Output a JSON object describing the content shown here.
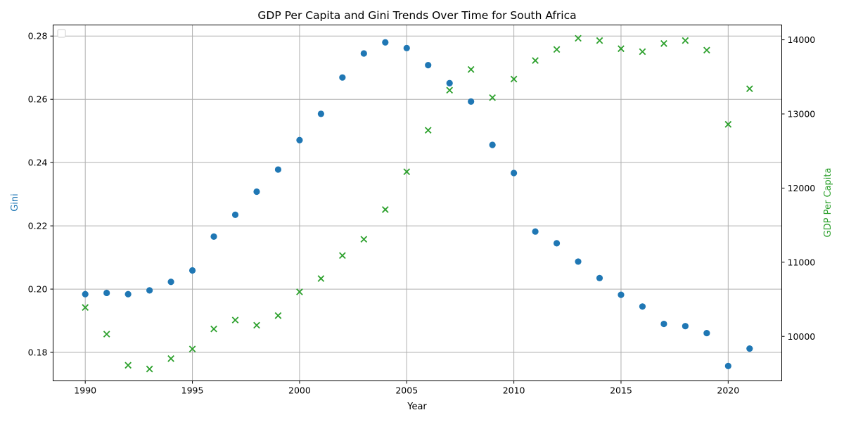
{
  "chart_data": {
    "type": "scatter",
    "title": "GDP Per Capita and Gini Trends Over Time for South Africa",
    "xlabel": "Year",
    "ylabel_left": "Gini",
    "ylabel_right": "GDP Per Capita",
    "xlim": [
      1988.5,
      2022.5
    ],
    "ylim_left": [
      0.171,
      0.2835
    ],
    "ylim_right": [
      9400,
      14200
    ],
    "x_ticks": [
      1990,
      1995,
      2000,
      2005,
      2010,
      2015,
      2020
    ],
    "y_ticks_left": [
      0.18,
      0.2,
      0.22,
      0.24,
      0.26,
      0.28
    ],
    "y_ticks_right": [
      10000,
      11000,
      12000,
      13000,
      14000
    ],
    "grid": true,
    "legend_position": "top-left",
    "x": [
      1990,
      1991,
      1992,
      1993,
      1994,
      1995,
      1996,
      1997,
      1998,
      1999,
      2000,
      2001,
      2002,
      2003,
      2004,
      2005,
      2006,
      2007,
      2008,
      2009,
      2010,
      2011,
      2012,
      2013,
      2014,
      2015,
      2016,
      2017,
      2018,
      2019,
      2020,
      2021
    ],
    "series": [
      {
        "name": "Gini",
        "axis": "left",
        "marker": "circle",
        "color": "#1f77b4",
        "values": [
          0.1984,
          0.1988,
          0.1984,
          0.1996,
          0.2023,
          0.2059,
          0.2166,
          0.2235,
          0.2308,
          0.2378,
          0.2471,
          0.2554,
          0.2669,
          0.2745,
          0.278,
          0.2762,
          0.2708,
          0.2651,
          0.2593,
          0.2456,
          0.2367,
          0.2182,
          0.2145,
          0.2087,
          0.2035,
          0.1982,
          0.1945,
          0.189,
          0.1883,
          0.1861,
          0.1757,
          0.1812
        ]
      },
      {
        "name": "GDP Per Capita",
        "axis": "right",
        "marker": "x",
        "color": "#2ca02c",
        "values": [
          10390,
          10030,
          9610,
          9560,
          9700,
          9830,
          10100,
          10220,
          10150,
          10280,
          10600,
          10780,
          11090,
          11310,
          11710,
          12220,
          12780,
          13320,
          13600,
          13220,
          13470,
          13720,
          13870,
          14020,
          13990,
          13880,
          13840,
          13950,
          13990,
          13860,
          12860,
          13340
        ]
      }
    ]
  }
}
